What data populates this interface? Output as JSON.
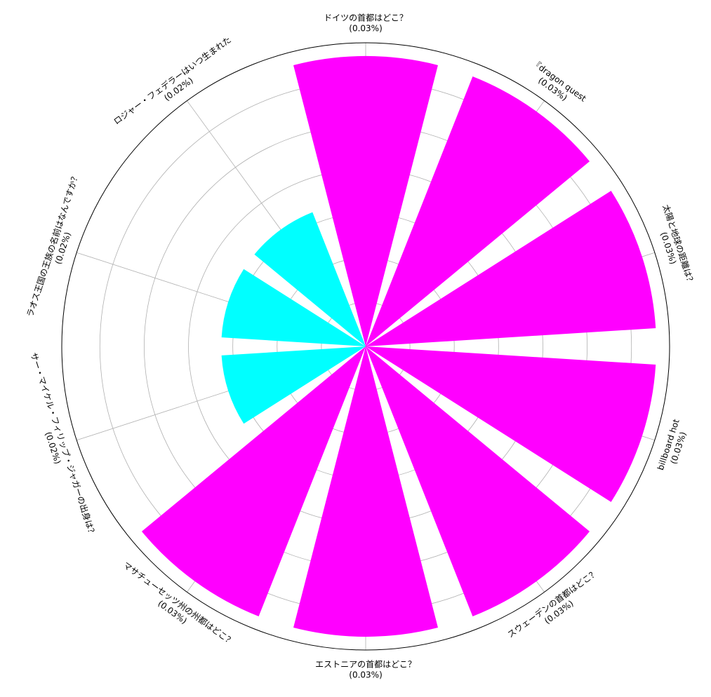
{
  "chart_data": {
    "type": "polar_bar",
    "categories": [
      "ドイツの首都はどこ？",
      "『dragon quest",
      "太陽と地球の距離は？",
      "billboard hot",
      "スウェーデンの首都はどこ？",
      "エストニアの首都はどこ？",
      "マサチューセッツ州の州都はどこ？",
      "サー・マイケル・フィリップ・ジャガーの出身は？",
      "ラオス王国の王族の名前はなんですか？",
      "ロジャー・フェデラーはいつ生まれた"
    ],
    "values": [
      0.0328,
      0.0328,
      0.0328,
      0.0328,
      0.0328,
      0.0328,
      0.0328,
      0.0163,
      0.0163,
      0.0163
    ],
    "value_labels": [
      "(0.03%)",
      "(0.03%)",
      "(0.03%)",
      "(0.03%)",
      "(0.03%)",
      "(0.03%)",
      "(0.03%)",
      "(0.02%)",
      "(0.02%)",
      "(0.02%)"
    ],
    "colors": [
      "#ff00ff",
      "#ff00ff",
      "#ff00ff",
      "#ff00ff",
      "#ff00ff",
      "#ff00ff",
      "#ff00ff",
      "#00ffff",
      "#00ffff",
      "#00ffff"
    ],
    "ylim": [
      0,
      0.0343
    ],
    "yticks": [
      0.005,
      0.01,
      0.015,
      0.02,
      0.025,
      0.03
    ],
    "grid": true
  }
}
